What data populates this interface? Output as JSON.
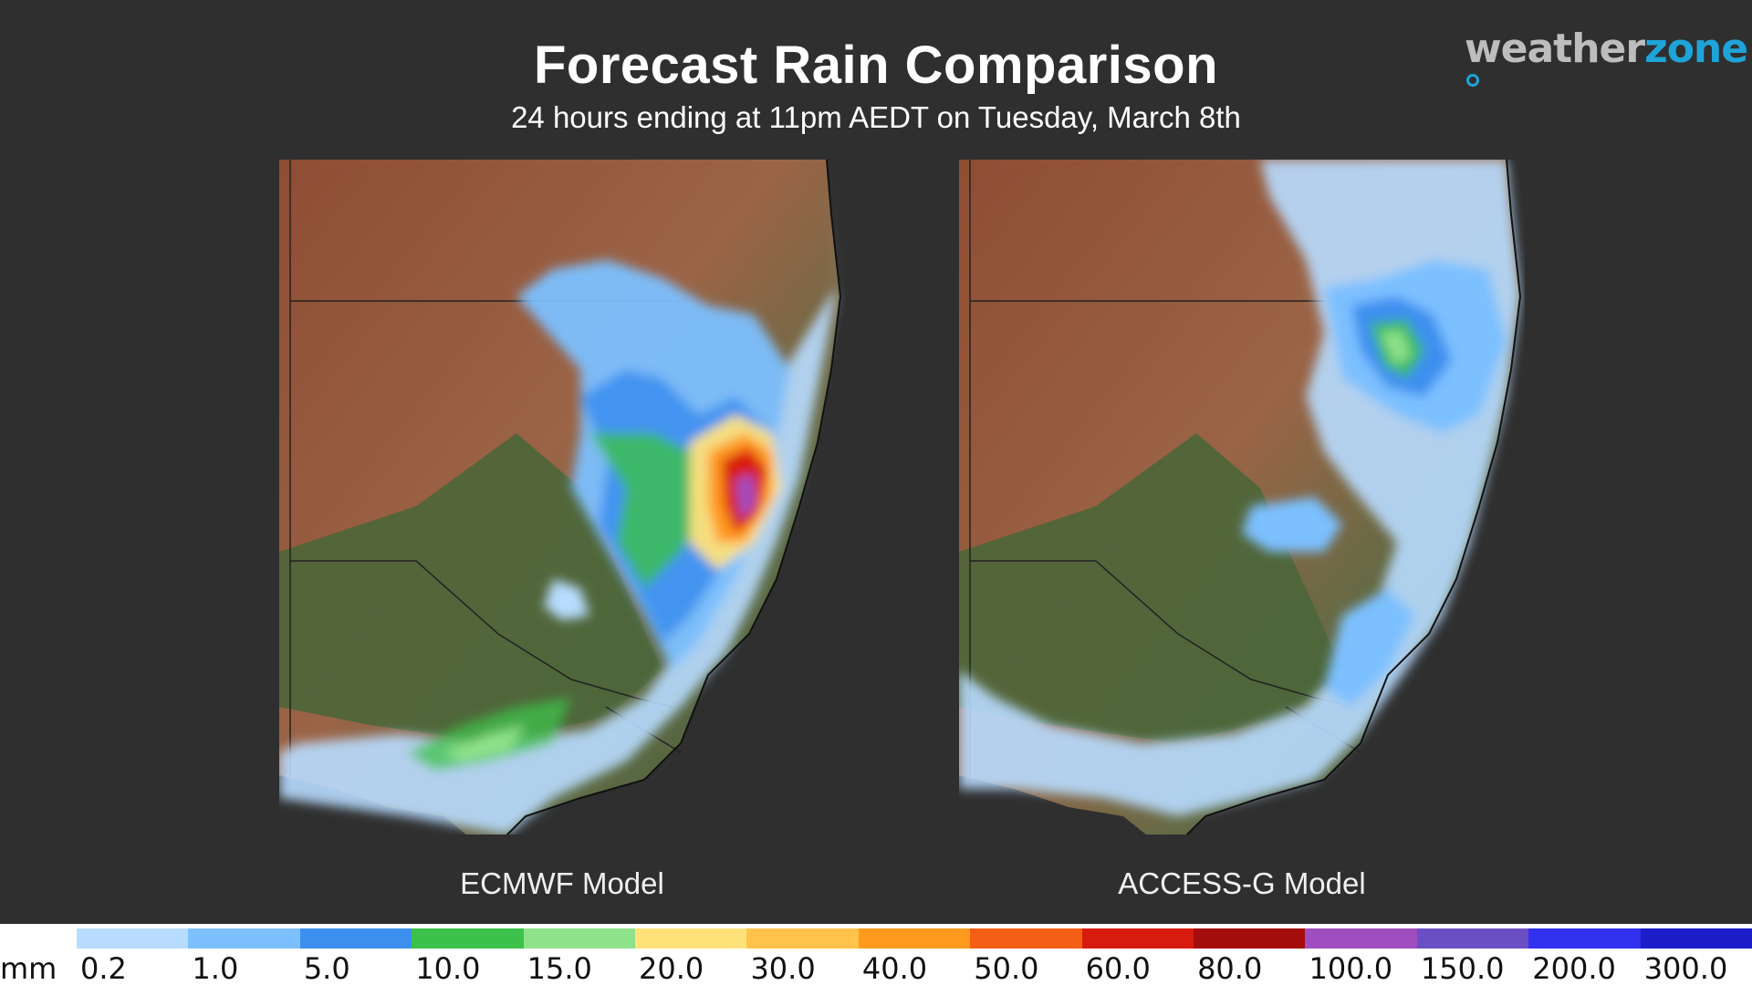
{
  "header": {
    "title": "Forecast Rain Comparison",
    "subtitle": "24 hours ending at 11pm AEDT on Tuesday, March 8th"
  },
  "logo": {
    "part1": "weather",
    "part2": "zone",
    "primary_color": "#bdbdbd",
    "accent_color": "#1fa3d8"
  },
  "maps": [
    {
      "label": "ECMWF Model"
    },
    {
      "label": "ACCESS-G Model"
    }
  ],
  "legend": {
    "unit": "mm",
    "labels": [
      "0.2",
      "1.0",
      "5.0",
      "10.0",
      "15.0",
      "20.0",
      "30.0",
      "40.0",
      "50.0",
      "60.0",
      "80.0",
      "100.0",
      "150.0",
      "200.0",
      "300.0"
    ],
    "colors": [
      "#b8dcff",
      "#7cc0ff",
      "#3d8fef",
      "#3cc24a",
      "#8ee28a",
      "#ffe37a",
      "#ffc24a",
      "#ff9a1f",
      "#f45f15",
      "#d81b0f",
      "#a50d0d",
      "#a04dbf",
      "#6a4fc4",
      "#3131ee",
      "#1c1cc8"
    ]
  },
  "colors": {
    "background": "#2f2f2f",
    "land_dry": "#9a5a3d",
    "land_green": "#4f6a3a"
  }
}
